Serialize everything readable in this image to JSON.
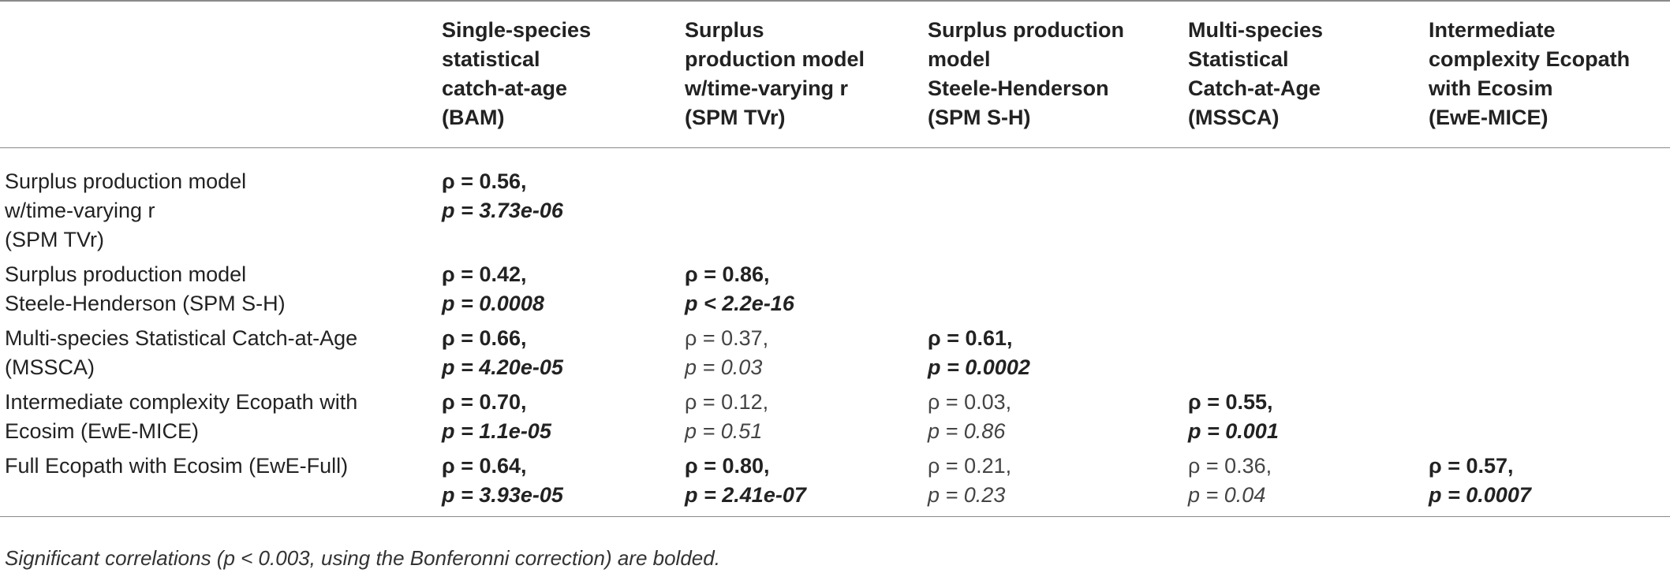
{
  "columns": [
    {
      "lines": [
        "Single-species",
        "statistical",
        "catch-at-age",
        "(BAM)"
      ]
    },
    {
      "lines": [
        "Surplus",
        "production model",
        "w/time-varying r",
        "(SPM TVr)"
      ]
    },
    {
      "lines": [
        "Surplus production",
        "model",
        "Steele-Henderson",
        "(SPM S-H)"
      ]
    },
    {
      "lines": [
        "Multi-species",
        "Statistical",
        "Catch-at-Age",
        "(MSSCA)"
      ]
    },
    {
      "lines": [
        "Intermediate",
        "complexity Ecopath",
        "with Ecosim",
        "(EwE-MICE)"
      ]
    }
  ],
  "rows": [
    {
      "label": [
        "Surplus production model",
        "w/time-varying r",
        "(SPM TVr)"
      ],
      "cells": [
        {
          "rho": "ρ = 0.56,",
          "p": "p = 3.73e-06",
          "sig": true
        },
        null,
        null,
        null,
        null
      ]
    },
    {
      "label": [
        "Surplus production model",
        "Steele-Henderson (SPM S-H)"
      ],
      "cells": [
        {
          "rho": "ρ = 0.42,",
          "p": "p = 0.0008",
          "sig": true
        },
        {
          "rho": "ρ = 0.86,",
          "p": "p < 2.2e-16",
          "sig": true
        },
        null,
        null,
        null
      ]
    },
    {
      "label": [
        "Multi-species Statistical Catch-at-Age",
        "(MSSCA)"
      ],
      "cells": [
        {
          "rho": "ρ = 0.66,",
          "p": "p = 4.20e-05",
          "sig": true
        },
        {
          "rho": "ρ = 0.37,",
          "p": "p = 0.03",
          "sig": false
        },
        {
          "rho": "ρ = 0.61,",
          "p": "p = 0.0002",
          "sig": true
        },
        null,
        null
      ]
    },
    {
      "label": [
        "Intermediate complexity Ecopath with",
        "Ecosim (EwE-MICE)"
      ],
      "cells": [
        {
          "rho": "ρ = 0.70,",
          "p": "p = 1.1e-05",
          "sig": true
        },
        {
          "rho": "ρ = 0.12,",
          "p": "p = 0.51",
          "sig": false
        },
        {
          "rho": "ρ = 0.03,",
          "p": "p = 0.86",
          "sig": false
        },
        {
          "rho": "ρ = 0.55,",
          "p": "p = 0.001",
          "sig": true
        },
        null
      ]
    },
    {
      "label": [
        "Full Ecopath with Ecosim (EwE-Full)"
      ],
      "cells": [
        {
          "rho": "ρ = 0.64,",
          "p": "p = 3.93e-05",
          "sig": true
        },
        {
          "rho": "ρ = 0.80,",
          "p": "p = 2.41e-07",
          "sig": true
        },
        {
          "rho": "ρ = 0.21,",
          "p": "p = 0.23",
          "sig": false
        },
        {
          "rho": "ρ = 0.36,",
          "p": "p = 0.04",
          "sig": false
        },
        {
          "rho": "ρ = 0.57,",
          "p": "p = 0.0007",
          "sig": true
        }
      ]
    }
  ],
  "footnote": "Significant correlations (p < 0.003, using the Bonferonni correction) are bolded."
}
